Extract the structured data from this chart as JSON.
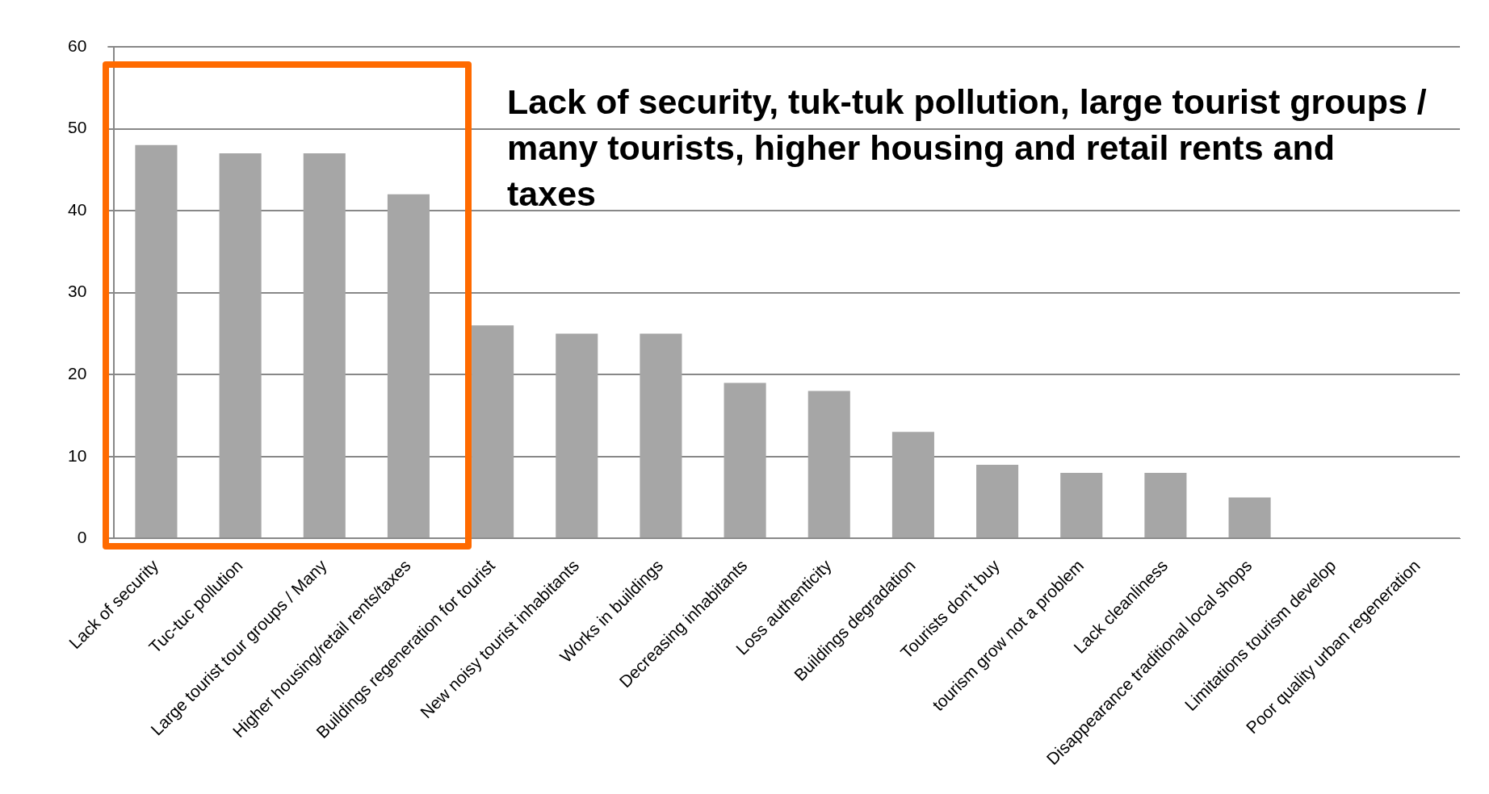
{
  "chart_data": {
    "type": "bar",
    "categories": [
      "Lack of security",
      "Tuc-tuc pollution",
      "Large tourist tour groups / Many",
      "Higher housing/retail rents/taxes",
      "Buildings regeneration for tourist",
      "New noisy tourist inhabitants",
      "Works in buildings",
      "Decreasing inhabitants",
      "Loss authenticity",
      "Buildings degradation",
      "Tourists don't buy",
      "tourism grow not a problem",
      "Lack cleanliness",
      "Disappearance traditional local shops",
      "Limitations tourism develop",
      "Poor quality urban regeneration"
    ],
    "values": [
      48,
      47,
      47,
      42,
      26,
      25,
      25,
      19,
      18,
      13,
      9,
      8,
      8,
      5,
      0,
      0
    ],
    "color": "#a6a6a6",
    "ylim": [
      0,
      60
    ],
    "yticks": [
      0,
      10,
      20,
      30,
      40,
      50,
      60
    ],
    "grid": "y",
    "annotations": [
      "Lack of security, tuk-tuk pollution, large tourist groups / many tourists, higher housing and retail rents and taxes"
    ]
  }
}
